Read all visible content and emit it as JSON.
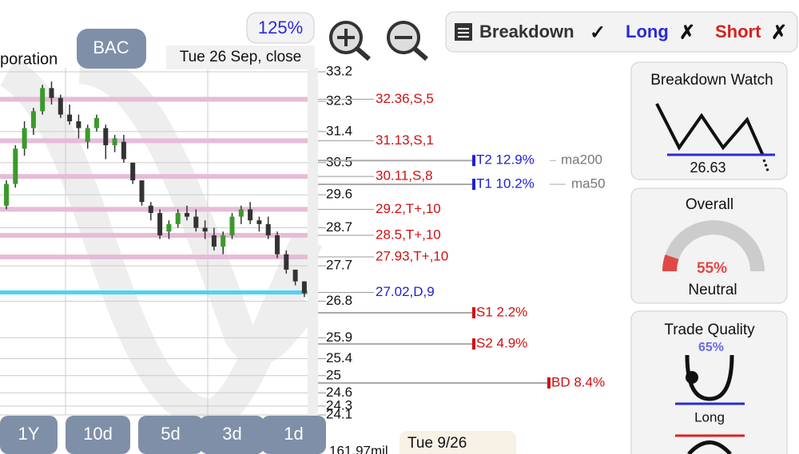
{
  "header": {
    "symbol": "BAC",
    "company_fragment": "poration",
    "zoom": "125%",
    "date": "Tue 26 Sep, close"
  },
  "toggles": [
    {
      "label": "Breakdown",
      "state": "✓"
    },
    {
      "label": "Long",
      "state": "✗"
    },
    {
      "label": "Short",
      "state": "✗"
    }
  ],
  "chart_data": {
    "type": "candlestick",
    "yscale": "log",
    "ylim": [
      24.1,
      33.2
    ],
    "yticks": [
      33.2,
      32.3,
      31.4,
      30.5,
      29.6,
      28.7,
      27.7,
      26.8,
      25.9,
      25.4,
      25,
      24.6,
      24.3,
      24.1
    ],
    "grid": true,
    "candles": [
      {
        "o": 29.3,
        "h": 30.0,
        "l": 29.2,
        "c": 29.9
      },
      {
        "o": 29.9,
        "h": 31.0,
        "l": 29.8,
        "c": 30.9
      },
      {
        "o": 30.9,
        "h": 31.7,
        "l": 30.7,
        "c": 31.5
      },
      {
        "o": 31.5,
        "h": 32.1,
        "l": 31.3,
        "c": 32.0
      },
      {
        "o": 32.0,
        "h": 32.8,
        "l": 31.9,
        "c": 32.7
      },
      {
        "o": 32.7,
        "h": 32.9,
        "l": 32.2,
        "c": 32.4
      },
      {
        "o": 32.4,
        "h": 32.5,
        "l": 31.8,
        "c": 31.9
      },
      {
        "o": 31.9,
        "h": 32.2,
        "l": 31.6,
        "c": 31.7
      },
      {
        "o": 31.7,
        "h": 31.9,
        "l": 31.2,
        "c": 31.5
      },
      {
        "o": 31.1,
        "h": 31.6,
        "l": 30.9,
        "c": 31.5
      },
      {
        "o": 31.5,
        "h": 31.9,
        "l": 31.4,
        "c": 31.8
      },
      {
        "o": 31.5,
        "h": 31.6,
        "l": 30.6,
        "c": 31.0
      },
      {
        "o": 31.0,
        "h": 31.3,
        "l": 30.8,
        "c": 31.2
      },
      {
        "o": 31.1,
        "h": 31.3,
        "l": 30.5,
        "c": 30.6
      },
      {
        "o": 30.5,
        "h": 30.5,
        "l": 29.9,
        "c": 30.0
      },
      {
        "o": 30.0,
        "h": 30.0,
        "l": 29.3,
        "c": 29.4
      },
      {
        "o": 29.3,
        "h": 29.4,
        "l": 28.9,
        "c": 29.1
      },
      {
        "o": 29.1,
        "h": 29.2,
        "l": 28.4,
        "c": 28.5
      },
      {
        "o": 28.6,
        "h": 28.9,
        "l": 28.4,
        "c": 28.8
      },
      {
        "o": 28.8,
        "h": 29.2,
        "l": 28.7,
        "c": 29.1
      },
      {
        "o": 29.1,
        "h": 29.3,
        "l": 28.9,
        "c": 29.0
      },
      {
        "o": 29.0,
        "h": 29.2,
        "l": 28.6,
        "c": 28.7
      },
      {
        "o": 28.7,
        "h": 28.9,
        "l": 28.4,
        "c": 28.6
      },
      {
        "o": 28.5,
        "h": 28.7,
        "l": 28.1,
        "c": 28.2
      },
      {
        "o": 28.2,
        "h": 28.6,
        "l": 28.0,
        "c": 28.5
      },
      {
        "o": 28.5,
        "h": 29.1,
        "l": 28.4,
        "c": 29.0
      },
      {
        "o": 29.0,
        "h": 29.3,
        "l": 28.8,
        "c": 29.2
      },
      {
        "o": 29.2,
        "h": 29.4,
        "l": 28.8,
        "c": 28.9
      },
      {
        "o": 28.9,
        "h": 29.0,
        "l": 28.6,
        "c": 28.8
      },
      {
        "o": 28.8,
        "h": 29.0,
        "l": 28.4,
        "c": 28.5
      },
      {
        "o": 28.5,
        "h": 28.6,
        "l": 27.9,
        "c": 28.0
      },
      {
        "o": 28.0,
        "h": 28.1,
        "l": 27.5,
        "c": 27.6
      },
      {
        "o": 27.6,
        "h": 27.6,
        "l": 27.2,
        "c": 27.3
      },
      {
        "o": 27.3,
        "h": 27.3,
        "l": 26.9,
        "c": 27.0
      }
    ],
    "levels": [
      {
        "value": 32.36,
        "label": "32.36,S,5"
      },
      {
        "value": 31.13,
        "label": "31.13,S,1"
      },
      {
        "value": 30.11,
        "label": "30.11,S,8"
      },
      {
        "value": 29.2,
        "label": "29.2,T+,10"
      },
      {
        "value": 28.5,
        "label": "28.5,T+,10"
      },
      {
        "value": 27.93,
        "label": "27.93,T+,10"
      }
    ],
    "current": {
      "value": 27.02,
      "label": "27.02,D,9"
    },
    "targets": [
      {
        "value": 30.56,
        "label": "T2 12.9%",
        "ma": "ma200"
      },
      {
        "value": 29.89,
        "label": "T1 10.2%",
        "ma": "ma50"
      },
      {
        "value": 26.51,
        "label": "S1 2.2%"
      },
      {
        "value": 25.75,
        "label": "S2 4.9%"
      },
      {
        "value": 24.83,
        "label": "BD 8.4%"
      }
    ],
    "volume": "161.97mil",
    "cursor_date": "Tue 9/26"
  },
  "range_buttons": [
    "1Y",
    "10d",
    "5d",
    "3d",
    "1d"
  ],
  "panels": {
    "breakdown_watch": {
      "title": "Breakdown Watch",
      "value": "26.63"
    },
    "overall": {
      "title": "Overall",
      "value": "55%",
      "status": "Neutral"
    },
    "trade_quality": {
      "title": "Trade Quality",
      "value": "65%",
      "status": "Long"
    }
  }
}
